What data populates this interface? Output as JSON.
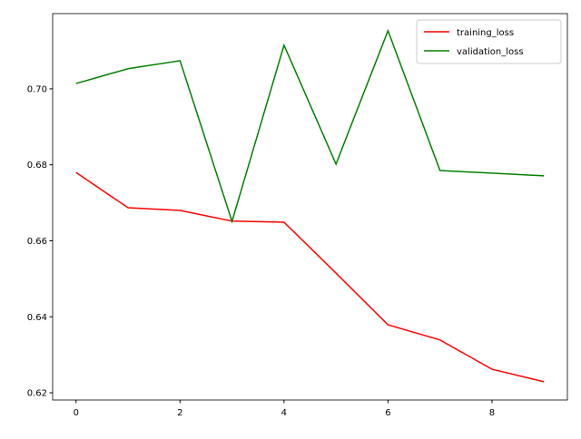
{
  "chart_data": {
    "type": "line",
    "x": [
      0,
      1,
      2,
      3,
      4,
      5,
      6,
      7,
      8,
      9
    ],
    "series": [
      {
        "name": "training_loss",
        "color": "#ff0000",
        "values": [
          0.678,
          0.6687,
          0.668,
          0.6652,
          0.6649,
          0.6515,
          0.6379,
          0.6339,
          0.6262,
          0.6229
        ]
      },
      {
        "name": "validation_loss",
        "color": "#008000",
        "values": [
          0.7014,
          0.7053,
          0.7074,
          0.6651,
          0.7115,
          0.6802,
          0.7153,
          0.6785,
          0.6778,
          0.6771
        ]
      }
    ],
    "xlim": [
      -0.45,
      9.45
    ],
    "xticks": [
      0,
      2,
      4,
      6,
      8
    ],
    "ylim": [
      0.6181,
      0.7198
    ],
    "yticks": [
      {
        "value": 0.62,
        "label": "0.62"
      },
      {
        "value": 0.64,
        "label": "0.64"
      },
      {
        "value": 0.66,
        "label": "0.66"
      },
      {
        "value": 0.68,
        "label": "0.68"
      },
      {
        "value": 0.7,
        "label": "0.70"
      }
    ],
    "legend": "upper right"
  }
}
